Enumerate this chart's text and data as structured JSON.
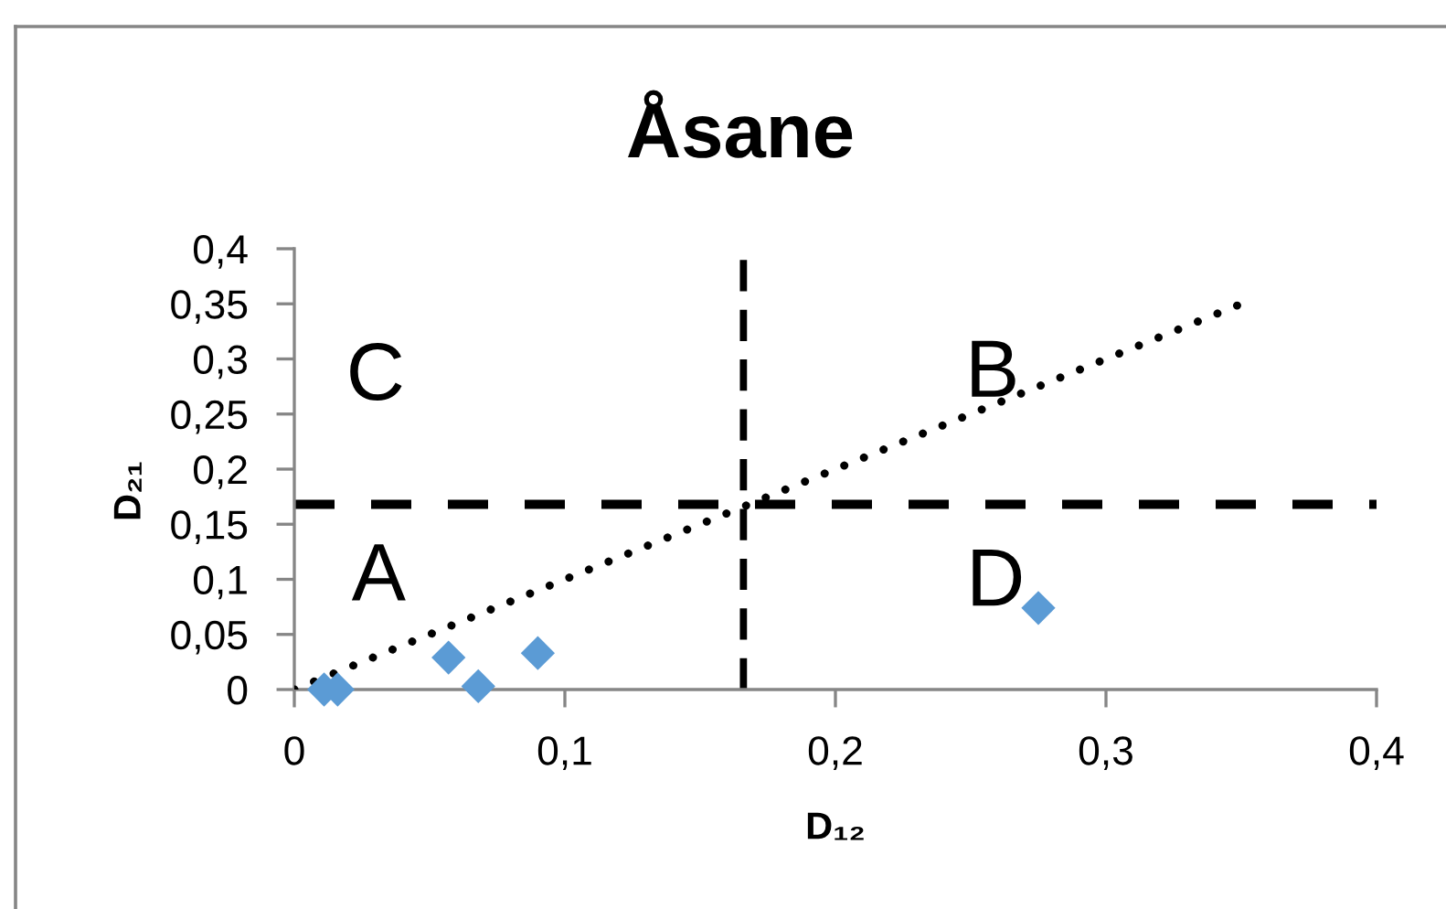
{
  "chart_data": {
    "type": "scatter",
    "title": "Åsane",
    "xlabel": "D₁₂",
    "ylabel": "D₂₁",
    "x": [
      0.011,
      0.016,
      0.057,
      0.068,
      0.09,
      0.275
    ],
    "series": [
      {
        "color": "#5b9bd5",
        "marker": "diamond",
        "values": [
          0,
          0,
          0.029,
          0.003,
          0.033,
          0.074
        ]
      },
      {
        "type": "line",
        "x": [
          0,
          0.35
        ],
        "values": [
          0,
          0.35
        ],
        "color": "#000000",
        "line_style": "dotted",
        "marker": "none"
      }
    ],
    "xlim": [
      0,
      0.4
    ],
    "xticks": [
      0,
      {
        "value": 0.1,
        "label": "0,1"
      },
      {
        "value": 0.2,
        "label": "0,2"
      },
      {
        "value": 0.3,
        "label": "0,3"
      },
      {
        "value": 0.4,
        "label": "0,4"
      }
    ],
    "ylim": [
      0,
      0.4
    ],
    "yticks": [
      0,
      {
        "value": 0.05,
        "label": "0,05"
      },
      {
        "value": 0.1,
        "label": "0,1"
      },
      {
        "value": 0.15,
        "label": "0,15"
      },
      {
        "value": 0.2,
        "label": "0,2"
      },
      {
        "value": 0.25,
        "label": "0,25"
      },
      {
        "value": 0.3,
        "label": "0,3"
      },
      {
        "value": 0.35,
        "label": "0,35"
      },
      {
        "value": 0.4,
        "label": "0,4"
      }
    ],
    "ref_lines": [
      {
        "axis": "x",
        "value": 0.166,
        "color": "#000000",
        "line_style": "dashed"
      },
      {
        "axis": "y",
        "value": 0.168,
        "color": "#000000",
        "line_style": "dashed"
      }
    ],
    "annotations": [
      "C",
      "B",
      "A",
      "D"
    ]
  }
}
